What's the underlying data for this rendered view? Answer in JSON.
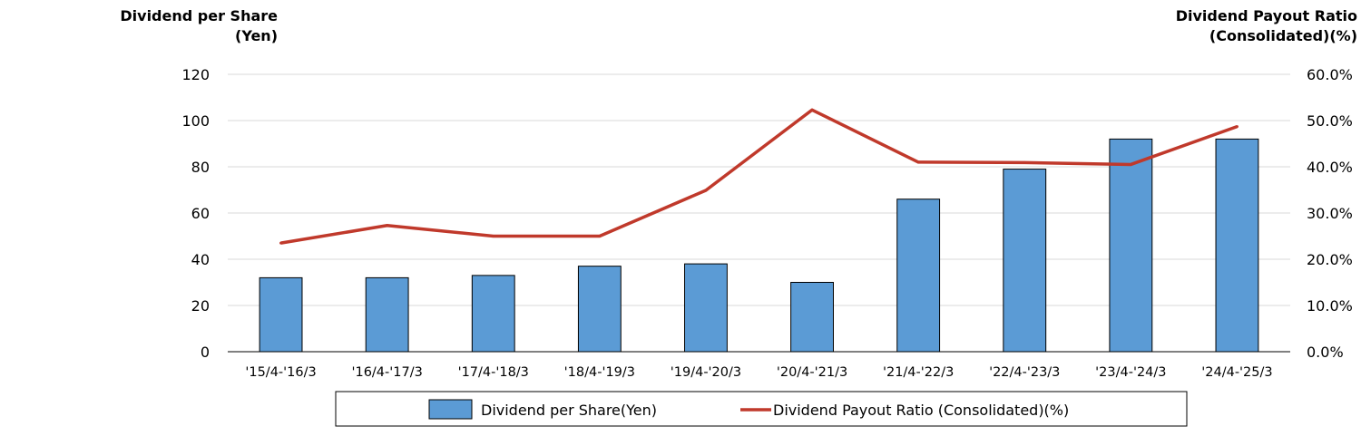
{
  "chart_data": {
    "type": "bar+line",
    "left_axis": {
      "title_lines": [
        "Dividend per Share",
        "(Yen)"
      ],
      "min": 0,
      "max": 120,
      "step": 20,
      "tick_labels": [
        "0",
        "20",
        "40",
        "60",
        "80",
        "100",
        "120"
      ]
    },
    "right_axis": {
      "title_lines": [
        "Dividend Payout Ratio",
        "(Consolidated)(%)"
      ],
      "min": 0,
      "max": 60,
      "step": 10,
      "tick_labels": [
        "0.0%",
        "10.0%",
        "20.0%",
        "30.0%",
        "40.0%",
        "50.0%",
        "60.0%"
      ]
    },
    "categories": [
      "'15/4-'16/3",
      "'16/4-'17/3",
      "'17/4-'18/3",
      "'18/4-'19/3",
      "'19/4-'20/3",
      "'20/4-'21/3",
      "'21/4-'22/3",
      "'22/4-'23/3",
      "'23/4-'24/3",
      "'24/4-'25/3"
    ],
    "series": [
      {
        "name": "Dividend per Share(Yen)",
        "type": "bar",
        "axis": "left",
        "color": "#5b9bd5",
        "values": [
          32,
          32,
          33,
          37,
          38,
          30,
          66,
          79,
          92,
          92
        ]
      },
      {
        "name": "Dividend Payout Ratio (Consolidated)(%)",
        "type": "line",
        "axis": "right",
        "color": "#c0392b",
        "values": [
          23.5,
          27.3,
          25.0,
          25.0,
          34.9,
          52.3,
          41.0,
          40.9,
          40.5,
          48.7
        ]
      }
    ],
    "grid": true,
    "legend_position": "bottom"
  }
}
